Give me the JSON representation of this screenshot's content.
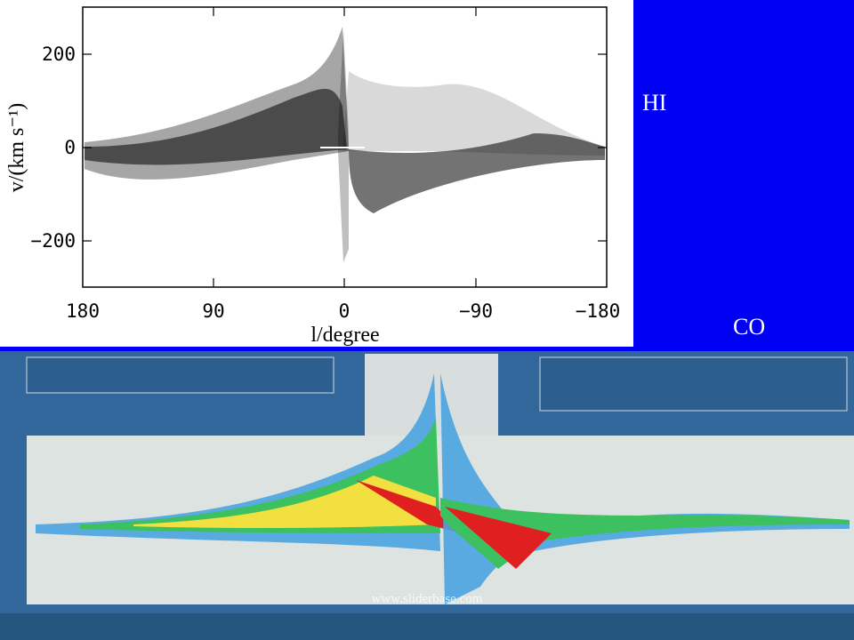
{
  "hi_panel": {
    "y_axis_label": "v/(km s⁻¹)",
    "x_axis_label": "l/degree",
    "y_ticks": [
      "200",
      "0",
      "−200"
    ],
    "x_ticks": [
      "180",
      "90",
      "0",
      "−90",
      "−180"
    ]
  },
  "labels": {
    "hi": "HI",
    "co": "CO"
  },
  "watermark": "www.sliderbase.com"
}
